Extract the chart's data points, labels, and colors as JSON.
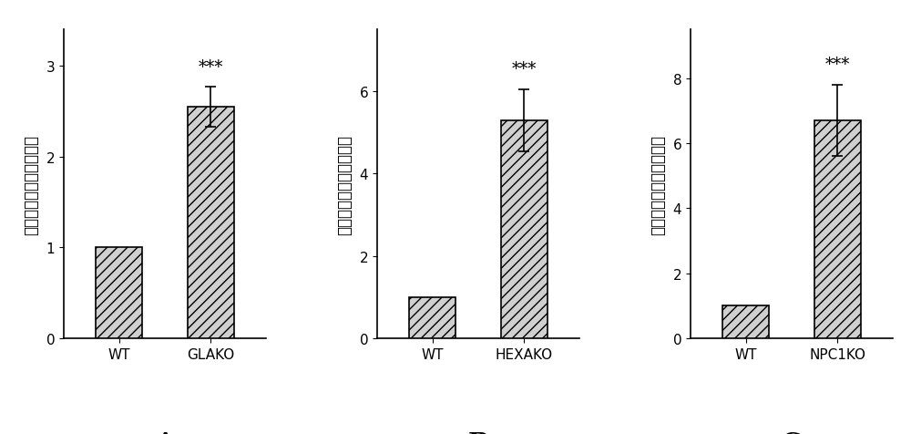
{
  "panels": [
    {
      "label": "A",
      "categories": [
        "WT",
        "GLAKO"
      ],
      "values": [
        1.0,
        2.55
      ],
      "errors": [
        0.0,
        0.22
      ],
      "ylim": [
        0,
        3.4
      ],
      "yticks": [
        0,
        1,
        2,
        3
      ],
      "sig_bar": [
        1,
        "***"
      ]
    },
    {
      "label": "B",
      "categories": [
        "WT",
        "HEXAKO"
      ],
      "values": [
        1.0,
        5.3
      ],
      "errors": [
        0.0,
        0.75
      ],
      "ylim": [
        0,
        7.5
      ],
      "yticks": [
        0,
        2,
        4,
        6
      ],
      "sig_bar": [
        1,
        "***"
      ]
    },
    {
      "label": "C",
      "categories": [
        "WT",
        "NPC1KO"
      ],
      "values": [
        1.0,
        6.7
      ],
      "errors": [
        0.0,
        1.1
      ],
      "ylim": [
        0,
        9.5
      ],
      "yticks": [
        0,
        2,
        4,
        6,
        8
      ],
      "sig_bar": [
        1,
        "***"
      ]
    }
  ],
  "ylabel": "正常化的细胞内溶酶体积",
  "bar_color": "#d0d0d0",
  "hatch": "///",
  "edge_color": "#000000",
  "background_color": "#ffffff",
  "tick_fontsize": 11,
  "ylabel_fontsize": 12,
  "sig_fontsize": 13,
  "panel_label_fontsize": 20
}
